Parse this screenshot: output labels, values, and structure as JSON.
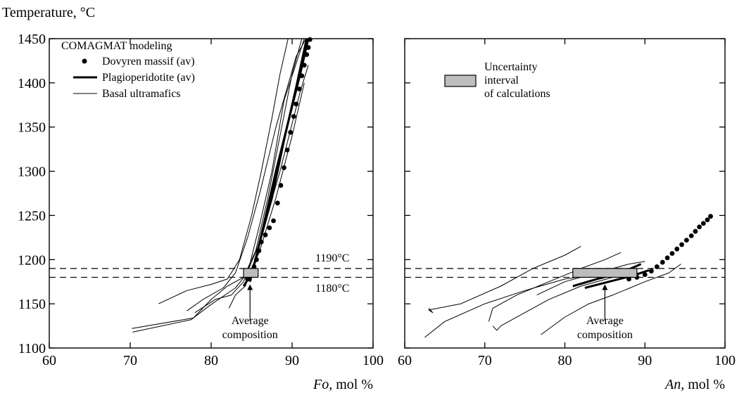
{
  "figure": {
    "ylabel": "Temperature, °C",
    "ref_lines": [
      {
        "value": 1190,
        "label": "1190°C"
      },
      {
        "value": 1180,
        "label": "1180°C"
      }
    ]
  },
  "chart_data": [
    {
      "type": "line",
      "xlabel_italic": "Fo",
      "xlabel_rest": ", mol %",
      "xlim": [
        60,
        100
      ],
      "ylim": [
        1100,
        1450
      ],
      "xticks": [
        "60",
        "70",
        "80",
        "90",
        "100"
      ],
      "yticks": [
        "1100",
        "1150",
        "1200",
        "1250",
        "1300",
        "1350",
        "1400",
        "1450"
      ],
      "legend": {
        "title": "COMAGMAT modeling",
        "items": [
          "Dovyren massif (av)",
          "Plagioperidotite (av)",
          "Basal ultramafics"
        ]
      },
      "annotation": {
        "line1": "Average",
        "line2": "composition",
        "arrow_x": 84.8,
        "arrow_y_from": 1131,
        "arrow_y_to": 1172
      },
      "uncertainty_box": {
        "x0": 84.0,
        "x1": 85.8,
        "y0": 1180,
        "y1": 1190
      },
      "series": [
        {
          "style": "dots",
          "points": [
            [
              84.5,
              1178
            ],
            [
              85.0,
              1185
            ],
            [
              85.3,
              1192
            ],
            [
              85.6,
              1200
            ],
            [
              85.9,
              1210
            ],
            [
              86.2,
              1220
            ],
            [
              86.7,
              1228
            ],
            [
              87.2,
              1236
            ],
            [
              87.7,
              1244
            ],
            [
              88.2,
              1264
            ],
            [
              88.6,
              1284
            ],
            [
              89.0,
              1304
            ],
            [
              89.4,
              1324
            ],
            [
              89.8,
              1344
            ],
            [
              90.2,
              1362
            ],
            [
              90.5,
              1376
            ],
            [
              90.9,
              1393
            ],
            [
              91.2,
              1408
            ],
            [
              91.5,
              1420
            ],
            [
              91.8,
              1432
            ],
            [
              92.0,
              1440
            ],
            [
              92.2,
              1449
            ]
          ]
        },
        {
          "style": "thick",
          "points": [
            [
              84.0,
              1170
            ],
            [
              84.7,
              1180
            ],
            [
              85.5,
              1200
            ],
            [
              86.5,
              1240
            ],
            [
              88.0,
              1300
            ],
            [
              89.5,
              1355
            ],
            [
              91.0,
              1410
            ],
            [
              92.0,
              1450
            ]
          ]
        },
        {
          "style": "thick",
          "points": [
            [
              84.8,
              1175
            ],
            [
              86.0,
              1220
            ],
            [
              87.5,
              1270
            ],
            [
              89.0,
              1335
            ],
            [
              90.5,
              1395
            ],
            [
              91.8,
              1450
            ]
          ]
        },
        {
          "style": "thin",
          "points": [
            [
              70.2,
              1122
            ],
            [
              77.8,
              1134
            ],
            [
              80.0,
              1155
            ],
            [
              82.0,
              1170
            ],
            [
              84.0,
              1180
            ],
            [
              85.5,
              1210
            ],
            [
              87.0,
              1270
            ],
            [
              88.5,
              1340
            ],
            [
              90.0,
              1410
            ],
            [
              91.2,
              1450
            ]
          ]
        },
        {
          "style": "thin",
          "points": [
            [
              70.3,
              1118
            ],
            [
              77.5,
              1132
            ],
            [
              79.8,
              1148
            ],
            [
              83.0,
              1168
            ],
            [
              84.5,
              1185
            ],
            [
              86.0,
              1240
            ],
            [
              87.5,
              1300
            ],
            [
              89.0,
              1380
            ],
            [
              91.5,
              1450
            ]
          ]
        },
        {
          "style": "thin",
          "points": [
            [
              73.5,
              1150
            ],
            [
              77.0,
              1165
            ],
            [
              80.0,
              1172
            ],
            [
              82.0,
              1178
            ],
            [
              83.5,
              1200
            ],
            [
              85.0,
              1250
            ],
            [
              86.2,
              1300
            ],
            [
              87.5,
              1360
            ],
            [
              88.5,
              1410
            ],
            [
              89.5,
              1450
            ]
          ]
        },
        {
          "style": "thin",
          "points": [
            [
              77.0,
              1142
            ],
            [
              79.0,
              1155
            ],
            [
              81.5,
              1168
            ],
            [
              83.0,
              1185
            ],
            [
              84.5,
              1225
            ],
            [
              86.0,
              1275
            ],
            [
              88.0,
              1350
            ],
            [
              90.5,
              1430
            ],
            [
              91.7,
              1450
            ]
          ]
        },
        {
          "style": "thin",
          "points": [
            [
              78.0,
              1140
            ],
            [
              80.5,
              1155
            ],
            [
              82.5,
              1160
            ],
            [
              84.0,
              1175
            ],
            [
              86.0,
              1220
            ],
            [
              88.5,
              1300
            ],
            [
              91.0,
              1390
            ],
            [
              92.0,
              1420
            ]
          ]
        },
        {
          "style": "thin",
          "points": [
            [
              82.2,
              1145
            ],
            [
              83.0,
              1160
            ],
            [
              84.2,
              1170
            ],
            [
              86.0,
              1210
            ],
            [
              88.0,
              1270
            ],
            [
              90.0,
              1340
            ],
            [
              91.5,
              1400
            ]
          ]
        }
      ]
    },
    {
      "type": "line",
      "xlabel_italic": "An",
      "xlabel_rest": ", mol %",
      "xlim": [
        60,
        100
      ],
      "ylim": [
        1100,
        1450
      ],
      "xticks": [
        "60",
        "70",
        "80",
        "90",
        "100"
      ],
      "legend": {
        "items": [
          "Uncertainty",
          "interval",
          "of calculations"
        ]
      },
      "annotation": {
        "line1": "Average",
        "line2": "composition",
        "arrow_x": 85.0,
        "arrow_y_from": 1131,
        "arrow_y_to": 1172
      },
      "uncertainty_box": {
        "x0": 81.0,
        "x1": 89.0,
        "y0": 1180,
        "y1": 1190
      },
      "series": [
        {
          "style": "dots",
          "points": [
            [
              88.0,
              1178
            ],
            [
              89.0,
              1180
            ],
            [
              90.0,
              1183
            ],
            [
              90.8,
              1187
            ],
            [
              91.5,
              1192
            ],
            [
              92.2,
              1197
            ],
            [
              92.8,
              1202
            ],
            [
              93.4,
              1207
            ],
            [
              94.0,
              1212
            ],
            [
              94.6,
              1217
            ],
            [
              95.2,
              1222
            ],
            [
              95.8,
              1227
            ],
            [
              96.3,
              1232
            ],
            [
              96.8,
              1237
            ],
            [
              97.3,
              1241
            ],
            [
              97.8,
              1245
            ],
            [
              98.2,
              1249
            ]
          ]
        },
        {
          "style": "thick",
          "points": [
            [
              81.0,
              1170
            ],
            [
              84.0,
              1178
            ],
            [
              87.0,
              1185
            ],
            [
              89.5,
              1195
            ]
          ]
        },
        {
          "style": "thick",
          "points": [
            [
              82.5,
              1168
            ],
            [
              85.5,
              1175
            ],
            [
              88.5,
              1182
            ],
            [
              90.5,
              1188
            ]
          ]
        },
        {
          "style": "thin",
          "points": [
            [
              63.0,
              1145
            ],
            [
              63.5,
              1140
            ],
            [
              63.0,
              1143
            ],
            [
              67.0,
              1150
            ],
            [
              72.0,
              1170
            ],
            [
              76.0,
              1190
            ],
            [
              80.0,
              1205
            ],
            [
              82.0,
              1215
            ]
          ]
        },
        {
          "style": "thin",
          "points": [
            [
              62.5,
              1112
            ],
            [
              65.0,
              1130
            ],
            [
              70.0,
              1150
            ],
            [
              75.0,
              1165
            ],
            [
              80.0,
              1178
            ],
            [
              84.0,
              1183
            ],
            [
              87.5,
              1186
            ]
          ]
        },
        {
          "style": "thin",
          "points": [
            [
              71.0,
              1125
            ],
            [
              71.5,
              1120
            ],
            [
              72.0,
              1125
            ],
            [
              75.0,
              1140
            ],
            [
              78.0,
              1155
            ],
            [
              82.0,
              1170
            ],
            [
              86.0,
              1180
            ],
            [
              89.5,
              1185
            ]
          ]
        },
        {
          "style": "thin",
          "points": [
            [
              70.5,
              1130
            ],
            [
              71.0,
              1145
            ],
            [
              74.0,
              1160
            ],
            [
              78.0,
              1175
            ],
            [
              82.0,
              1190
            ],
            [
              85.0,
              1200
            ],
            [
              87.0,
              1208
            ]
          ]
        },
        {
          "style": "thin",
          "points": [
            [
              76.5,
              1160
            ],
            [
              80.0,
              1175
            ],
            [
              84.0,
              1185
            ],
            [
              88.0,
              1195
            ],
            [
              90.0,
              1198
            ]
          ]
        },
        {
          "style": "thin",
          "points": [
            [
              77.0,
              1115
            ],
            [
              80.0,
              1135
            ],
            [
              83.0,
              1150
            ],
            [
              86.0,
              1160
            ],
            [
              90.0,
              1175
            ],
            [
              93.0,
              1185
            ],
            [
              94.5,
              1195
            ]
          ]
        }
      ]
    }
  ]
}
